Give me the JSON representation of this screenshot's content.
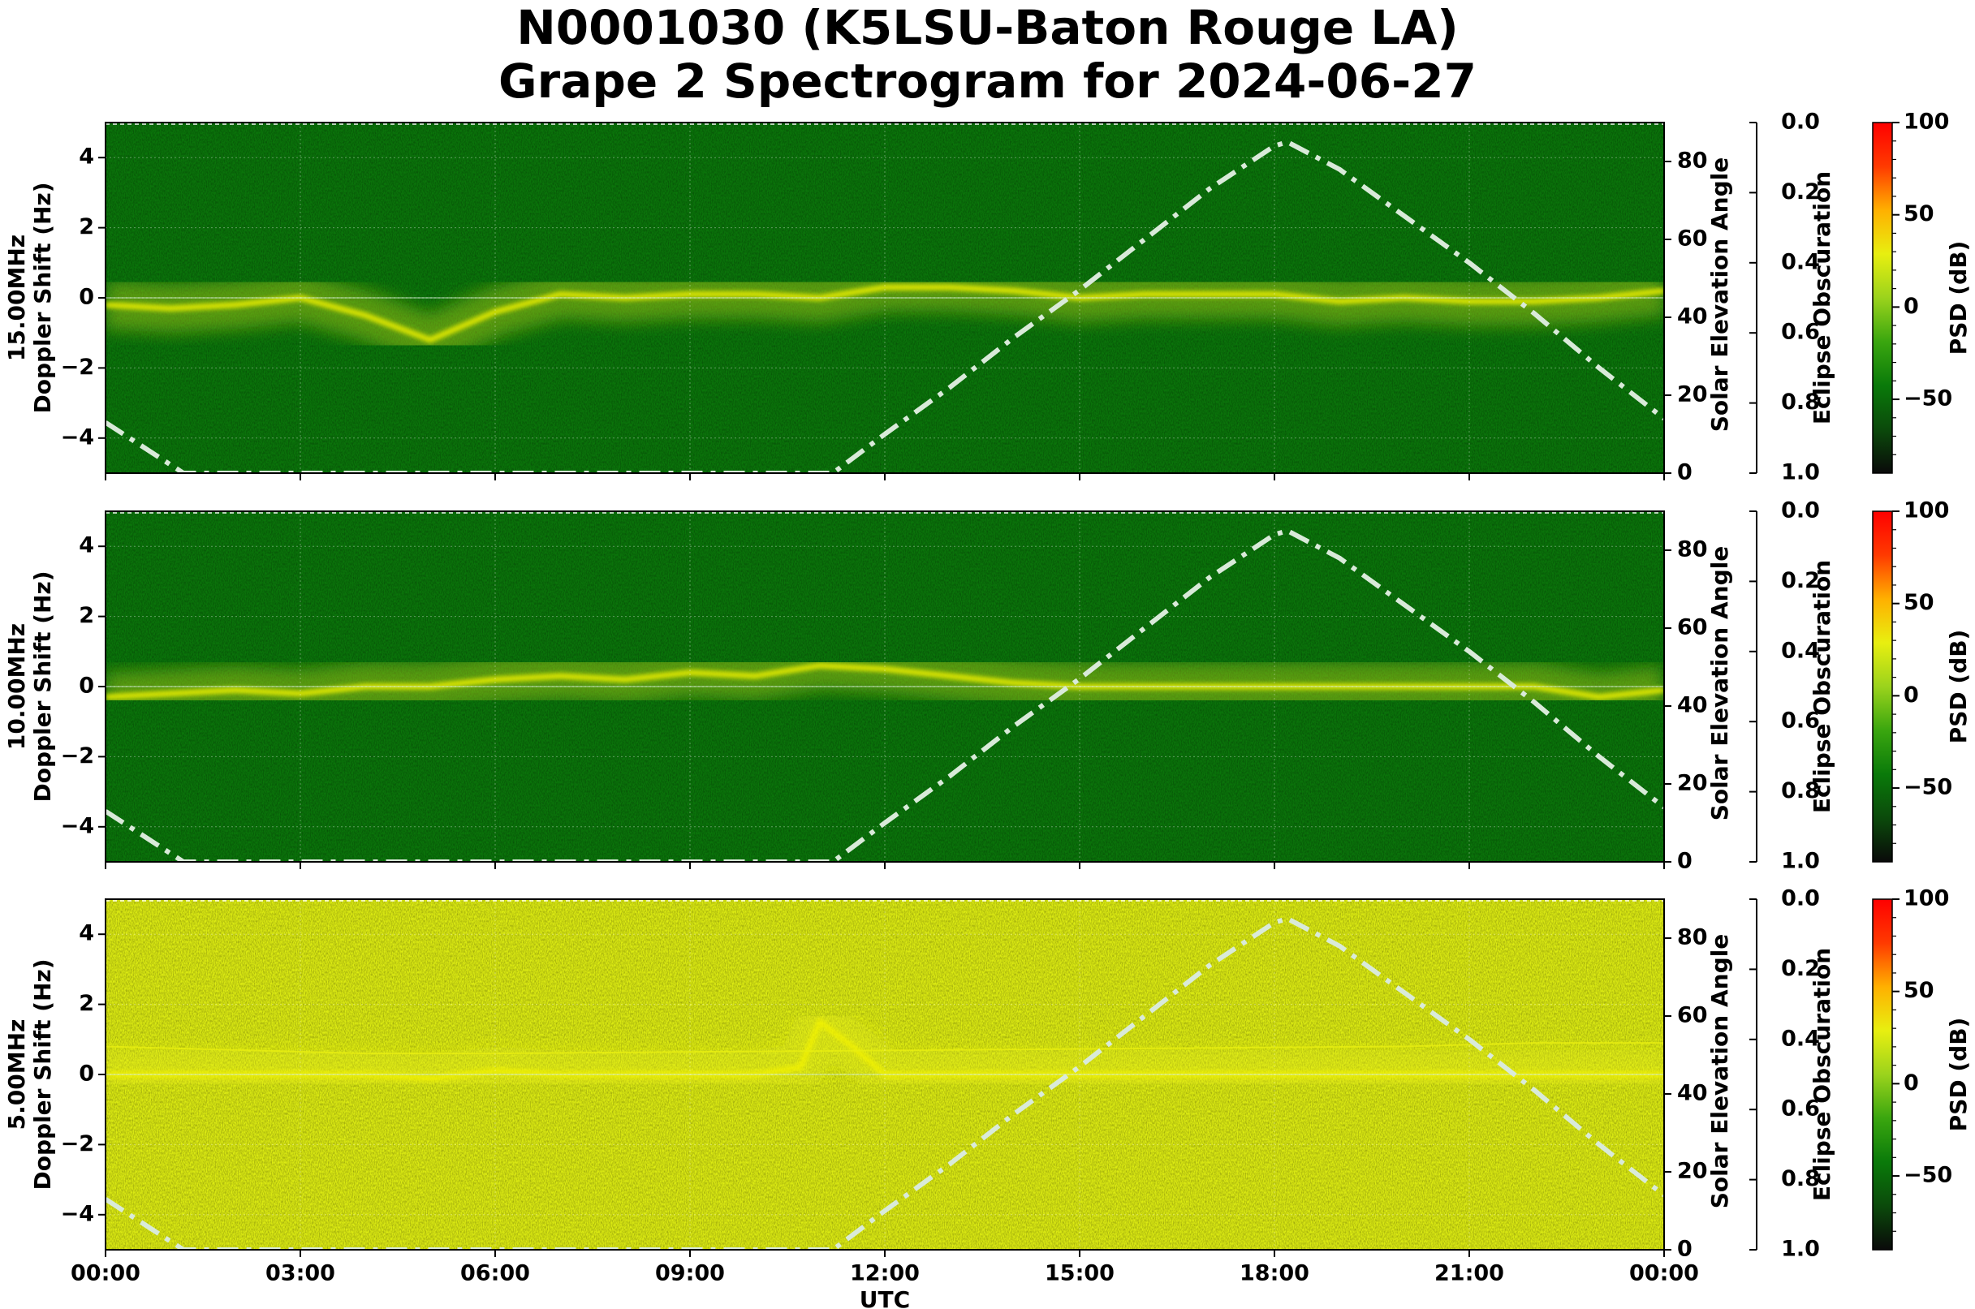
{
  "title": {
    "line1": "N0001030 (K5LSU-Baton Rouge LA)",
    "line2": "Grape 2 Spectrogram for 2024-06-27"
  },
  "xaxis": {
    "label": "UTC",
    "ticks": [
      "00:00",
      "03:00",
      "06:00",
      "09:00",
      "12:00",
      "15:00",
      "18:00",
      "21:00",
      "00:00"
    ]
  },
  "colors": {
    "background_high": "#1f9e1f",
    "solar_line": "#d9ead9",
    "colorbar_stops": [
      "#0a0a0a",
      "#0b4a0b",
      "#0a7a0a",
      "#3aa60f",
      "#9bd31c",
      "#e8ef10",
      "#ffb000",
      "#ff3a00",
      "#ff0000"
    ]
  },
  "chart_data": [
    {
      "type": "heatmap",
      "frequency_label": "15.00MHz",
      "ylabel": "Doppler Shift (Hz)",
      "ylim": [
        -5,
        5
      ],
      "yticks": [
        "4",
        "2",
        "0",
        "−2",
        "−4"
      ],
      "y2label": "Solar Elevation Angle",
      "y2lim": [
        0,
        90
      ],
      "y2ticks": [
        "80",
        "60",
        "40",
        "20",
        "0"
      ],
      "y3label": "Eclipse Obscuration",
      "y3ticks": [
        "0.0",
        "0.2",
        "0.4",
        "0.6",
        "0.8",
        "1.0"
      ],
      "cbar_label": "PSD (dB)",
      "cbar_ticks": [
        "100",
        "50",
        "0",
        "−50"
      ],
      "cbar_range": [
        -90,
        100
      ],
      "background_db": -45,
      "signal_trace_hz": [
        [
          0,
          -0.2
        ],
        [
          1,
          -0.3
        ],
        [
          2,
          -0.2
        ],
        [
          3,
          0.0
        ],
        [
          4,
          -0.5
        ],
        [
          5,
          -1.2
        ],
        [
          6,
          -0.4
        ],
        [
          7,
          0.1
        ],
        [
          8,
          0.0
        ],
        [
          9,
          0.1
        ],
        [
          10,
          0.1
        ],
        [
          11,
          0.0
        ],
        [
          12,
          0.3
        ],
        [
          13,
          0.3
        ],
        [
          14,
          0.2
        ],
        [
          15,
          0.0
        ],
        [
          16,
          0.1
        ],
        [
          17,
          0.1
        ],
        [
          18,
          0.1
        ],
        [
          19,
          -0.1
        ],
        [
          20,
          0.0
        ],
        [
          21,
          -0.1
        ],
        [
          22,
          -0.1
        ],
        [
          23,
          0.0
        ],
        [
          24,
          0.2
        ]
      ],
      "solar_elevation_deg": [
        [
          0,
          13
        ],
        [
          1.2,
          0
        ],
        [
          11.2,
          0
        ],
        [
          12,
          10
        ],
        [
          13,
          22
        ],
        [
          14,
          35
        ],
        [
          15,
          47
        ],
        [
          16,
          60
        ],
        [
          17,
          73
        ],
        [
          18,
          84
        ],
        [
          18.2,
          85
        ],
        [
          19,
          78
        ],
        [
          20,
          66
        ],
        [
          21,
          54
        ],
        [
          22,
          41
        ],
        [
          23,
          27
        ],
        [
          24,
          14
        ]
      ],
      "eclipse_obscuration": 0
    },
    {
      "type": "heatmap",
      "frequency_label": "10.00MHz",
      "ylabel": "Doppler Shift (Hz)",
      "ylim": [
        -5,
        5
      ],
      "yticks": [
        "4",
        "2",
        "0",
        "−2",
        "−4"
      ],
      "y2label": "Solar Elevation Angle",
      "y2lim": [
        0,
        90
      ],
      "y2ticks": [
        "80",
        "60",
        "40",
        "20",
        "0"
      ],
      "y3label": "Eclipse Obscuration",
      "y3ticks": [
        "0.0",
        "0.2",
        "0.4",
        "0.6",
        "0.8",
        "1.0"
      ],
      "cbar_label": "PSD (dB)",
      "cbar_ticks": [
        "100",
        "50",
        "0",
        "−50"
      ],
      "cbar_range": [
        -90,
        100
      ],
      "background_db": -45,
      "signal_trace_hz": [
        [
          0,
          -0.3
        ],
        [
          1,
          -0.2
        ],
        [
          2,
          -0.1
        ],
        [
          3,
          -0.2
        ],
        [
          4,
          0.0
        ],
        [
          5,
          0.0
        ],
        [
          6,
          0.2
        ],
        [
          7,
          0.3
        ],
        [
          8,
          0.2
        ],
        [
          9,
          0.4
        ],
        [
          10,
          0.3
        ],
        [
          11,
          0.6
        ],
        [
          12,
          0.5
        ],
        [
          13,
          0.3
        ],
        [
          14,
          0.1
        ],
        [
          15,
          0.0
        ],
        [
          16,
          0.0
        ],
        [
          17,
          0.0
        ],
        [
          18,
          0.0
        ],
        [
          19,
          0.0
        ],
        [
          20,
          0.0
        ],
        [
          21,
          0.0
        ],
        [
          22,
          0.0
        ],
        [
          23,
          -0.3
        ],
        [
          24,
          -0.1
        ]
      ],
      "solar_elevation_deg": [
        [
          0,
          13
        ],
        [
          1.2,
          0
        ],
        [
          11.2,
          0
        ],
        [
          12,
          10
        ],
        [
          13,
          22
        ],
        [
          14,
          35
        ],
        [
          15,
          47
        ],
        [
          16,
          60
        ],
        [
          17,
          73
        ],
        [
          18,
          84
        ],
        [
          18.2,
          85
        ],
        [
          19,
          78
        ],
        [
          20,
          66
        ],
        [
          21,
          54
        ],
        [
          22,
          41
        ],
        [
          23,
          27
        ],
        [
          24,
          14
        ]
      ],
      "eclipse_obscuration": 0
    },
    {
      "type": "heatmap",
      "frequency_label": "5.00MHz",
      "ylabel": "Doppler Shift (Hz)",
      "ylim": [
        -5,
        5
      ],
      "yticks": [
        "4",
        "2",
        "0",
        "−2",
        "−4"
      ],
      "y2label": "Solar Elevation Angle",
      "y2lim": [
        0,
        90
      ],
      "y2ticks": [
        "80",
        "60",
        "40",
        "20",
        "0"
      ],
      "y3label": "Eclipse Obscuration",
      "y3ticks": [
        "0.0",
        "0.2",
        "0.4",
        "0.6",
        "0.8",
        "1.0"
      ],
      "cbar_label": "PSD (dB)",
      "cbar_ticks": [
        "100",
        "50",
        "0",
        "−50"
      ],
      "cbar_range": [
        -90,
        100
      ],
      "background_db": 25,
      "signal_trace_hz": [
        [
          0,
          0.0
        ],
        [
          1,
          0.0
        ],
        [
          2,
          0.0
        ],
        [
          3,
          0.0
        ],
        [
          4,
          0.0
        ],
        [
          5,
          -0.1
        ],
        [
          6,
          0.1
        ],
        [
          7,
          0.0
        ],
        [
          8,
          0.0
        ],
        [
          9,
          0.0
        ],
        [
          10,
          0.0
        ],
        [
          10.7,
          0.2
        ],
        [
          11,
          1.5
        ],
        [
          11.5,
          0.8
        ],
        [
          12,
          0.0
        ],
        [
          13,
          0.0
        ],
        [
          14,
          0.0
        ],
        [
          15,
          0.0
        ],
        [
          16,
          0.0
        ],
        [
          17,
          0.0
        ],
        [
          18,
          0.0
        ],
        [
          19,
          0.0
        ],
        [
          20,
          0.0
        ],
        [
          21,
          0.0
        ],
        [
          22,
          0.0
        ],
        [
          23,
          0.0
        ],
        [
          24,
          0.0
        ]
      ],
      "secondary_trace_hz": [
        [
          0,
          0.8
        ],
        [
          2,
          0.7
        ],
        [
          4,
          0.6
        ],
        [
          6,
          0.6
        ],
        [
          20,
          0.8
        ],
        [
          22,
          0.9
        ],
        [
          24,
          0.9
        ]
      ],
      "solar_elevation_deg": [
        [
          0,
          13
        ],
        [
          1.2,
          0
        ],
        [
          11.2,
          0
        ],
        [
          12,
          10
        ],
        [
          13,
          22
        ],
        [
          14,
          35
        ],
        [
          15,
          47
        ],
        [
          16,
          60
        ],
        [
          17,
          73
        ],
        [
          18,
          84
        ],
        [
          18.2,
          85
        ],
        [
          19,
          78
        ],
        [
          20,
          66
        ],
        [
          21,
          54
        ],
        [
          22,
          41
        ],
        [
          23,
          27
        ],
        [
          24,
          14
        ]
      ],
      "eclipse_obscuration": 0
    }
  ]
}
